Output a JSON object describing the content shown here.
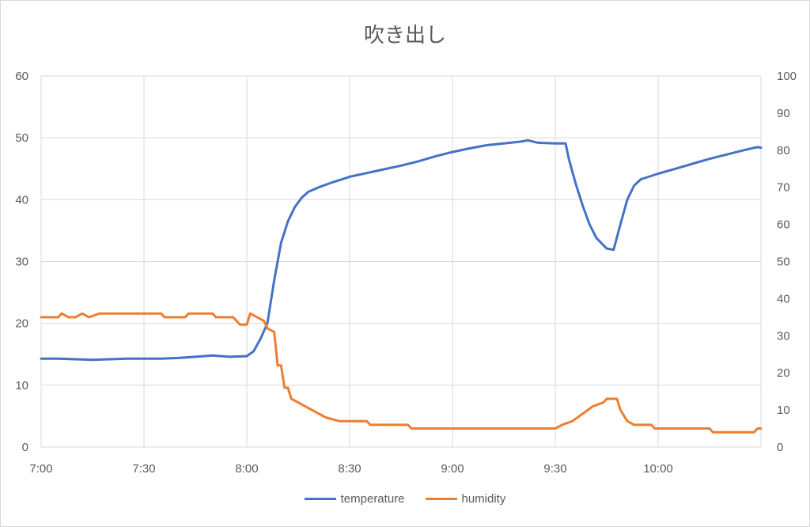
{
  "chart_data": {
    "type": "line",
    "title": "吹き出し",
    "x_ticks": [
      "7:00",
      "7:30",
      "8:00",
      "8:30",
      "9:00",
      "9:30",
      "10:00"
    ],
    "x_range": [
      "7:00",
      "10:30"
    ],
    "y_left": {
      "ylim": [
        0,
        60
      ],
      "ticks": [
        "0",
        "10",
        "20",
        "30",
        "40",
        "50",
        "60"
      ]
    },
    "y_right": {
      "ylim": [
        0,
        100
      ],
      "ticks": [
        "0",
        "10",
        "20",
        "30",
        "40",
        "50",
        "60",
        "70",
        "80",
        "90",
        "100"
      ]
    },
    "grid": true,
    "legend_position": "bottom",
    "series": [
      {
        "name": "temperature",
        "axis": "left",
        "color": "#4472c4",
        "points": [
          [
            "7:00",
            14.3
          ],
          [
            "7:05",
            14.3
          ],
          [
            "7:10",
            14.2
          ],
          [
            "7:15",
            14.1
          ],
          [
            "7:20",
            14.2
          ],
          [
            "7:25",
            14.3
          ],
          [
            "7:30",
            14.3
          ],
          [
            "7:35",
            14.3
          ],
          [
            "7:40",
            14.4
          ],
          [
            "7:45",
            14.6
          ],
          [
            "7:50",
            14.8
          ],
          [
            "7:55",
            14.6
          ],
          [
            "8:00",
            14.7
          ],
          [
            "8:02",
            15.5
          ],
          [
            "8:04",
            17.5
          ],
          [
            "8:06",
            20.0
          ],
          [
            "8:08",
            27.0
          ],
          [
            "8:10",
            33.0
          ],
          [
            "8:12",
            36.5
          ],
          [
            "8:14",
            38.8
          ],
          [
            "8:16",
            40.3
          ],
          [
            "8:18",
            41.3
          ],
          [
            "8:21",
            42.0
          ],
          [
            "8:25",
            42.8
          ],
          [
            "8:30",
            43.7
          ],
          [
            "8:35",
            44.3
          ],
          [
            "8:40",
            44.9
          ],
          [
            "8:45",
            45.5
          ],
          [
            "8:50",
            46.2
          ],
          [
            "8:55",
            47.0
          ],
          [
            "9:00",
            47.7
          ],
          [
            "9:05",
            48.3
          ],
          [
            "9:10",
            48.8
          ],
          [
            "9:15",
            49.1
          ],
          [
            "9:20",
            49.4
          ],
          [
            "9:22",
            49.6
          ],
          [
            "9:25",
            49.2
          ],
          [
            "9:30",
            49.1
          ],
          [
            "9:33",
            49.1
          ],
          [
            "9:34",
            46.5
          ],
          [
            "9:36",
            42.5
          ],
          [
            "9:38",
            39.0
          ],
          [
            "9:40",
            36.0
          ],
          [
            "9:42",
            33.8
          ],
          [
            "9:45",
            32.1
          ],
          [
            "9:47",
            31.9
          ],
          [
            "9:49",
            36.0
          ],
          [
            "9:51",
            40.0
          ],
          [
            "9:53",
            42.3
          ],
          [
            "9:55",
            43.3
          ],
          [
            "10:00",
            44.2
          ],
          [
            "10:05",
            45.0
          ],
          [
            "10:10",
            45.8
          ],
          [
            "10:15",
            46.6
          ],
          [
            "10:20",
            47.3
          ],
          [
            "10:25",
            48.0
          ],
          [
            "10:29",
            48.5
          ],
          [
            "10:30",
            48.4
          ]
        ]
      },
      {
        "name": "humidity",
        "axis": "right",
        "color": "#ed7d31",
        "points": [
          [
            "7:00",
            35
          ],
          [
            "7:05",
            35
          ],
          [
            "7:06",
            36
          ],
          [
            "7:08",
            35
          ],
          [
            "7:10",
            35
          ],
          [
            "7:12",
            36
          ],
          [
            "7:14",
            35
          ],
          [
            "7:17",
            36
          ],
          [
            "7:30",
            36
          ],
          [
            "7:35",
            36
          ],
          [
            "7:36",
            35
          ],
          [
            "7:42",
            35
          ],
          [
            "7:43",
            36
          ],
          [
            "7:50",
            36
          ],
          [
            "7:51",
            35
          ],
          [
            "7:56",
            35
          ],
          [
            "7:58",
            33
          ],
          [
            "8:00",
            33
          ],
          [
            "8:01",
            36
          ],
          [
            "8:03",
            35
          ],
          [
            "8:05",
            34
          ],
          [
            "8:06",
            32
          ],
          [
            "8:08",
            31
          ],
          [
            "8:09",
            22
          ],
          [
            "8:10",
            22
          ],
          [
            "8:11",
            16
          ],
          [
            "8:12",
            16
          ],
          [
            "8:13",
            13
          ],
          [
            "8:15",
            12
          ],
          [
            "8:17",
            11
          ],
          [
            "8:19",
            10
          ],
          [
            "8:21",
            9
          ],
          [
            "8:23",
            8
          ],
          [
            "8:27",
            7
          ],
          [
            "8:35",
            7
          ],
          [
            "8:36",
            6
          ],
          [
            "8:47",
            6
          ],
          [
            "8:48",
            5
          ],
          [
            "9:00",
            5
          ],
          [
            "9:30",
            5
          ],
          [
            "9:32",
            6
          ],
          [
            "9:35",
            7
          ],
          [
            "9:38",
            9
          ],
          [
            "9:41",
            11
          ],
          [
            "9:44",
            12
          ],
          [
            "9:45",
            13
          ],
          [
            "9:48",
            13
          ],
          [
            "9:49",
            10
          ],
          [
            "9:51",
            7
          ],
          [
            "9:53",
            6
          ],
          [
            "9:58",
            6
          ],
          [
            "9:59",
            5
          ],
          [
            "10:15",
            5
          ],
          [
            "10:16",
            4
          ],
          [
            "10:28",
            4
          ],
          [
            "10:29",
            5
          ],
          [
            "10:30",
            5
          ]
        ]
      }
    ]
  }
}
